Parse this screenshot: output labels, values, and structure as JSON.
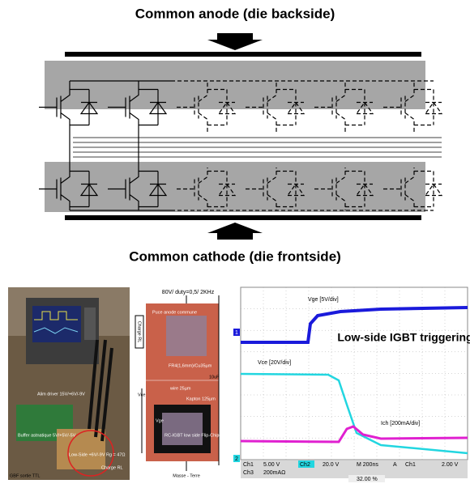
{
  "diagram": {
    "top_label": "Common anode (die backside)",
    "bottom_label": "Common cathode (die frontside)"
  },
  "photo_setup": {
    "labels": [
      "Alim driver 15V/+6V/-9V",
      "Buffer astnatique 5V/+5V/-5V",
      "Low-Side +6V/-9V Rg = 47Ω",
      "GBF sortie TTL",
      "Charge RL"
    ]
  },
  "photo_module": {
    "title": "80V/ duty=0,5/ 2KHz",
    "labels": [
      "Puce anode commune",
      "Charge RL",
      "FR4(1,6mm)/Cu35µm",
      "10uF",
      "wire 25µm",
      "Kapton 125µm",
      "Vce",
      "Vge",
      "RC-IGBT low side Flip-Chip",
      "Masse - Terre"
    ]
  },
  "scope": {
    "vge_label": "Vge [5V/div]",
    "title": "Low-side IGBT triggering",
    "vce_label": "Vce [20V/div]",
    "ich_label": "Ich [200mA/div]",
    "markers": [
      "1",
      "2"
    ],
    "status": [
      "Ch1",
      "5.00 V",
      "Ch2",
      "20.0 V",
      "M 200ns",
      "A",
      "Ch1",
      "2.00 V",
      "Ch3",
      "200mAΩ",
      "32.00 %"
    ]
  }
}
